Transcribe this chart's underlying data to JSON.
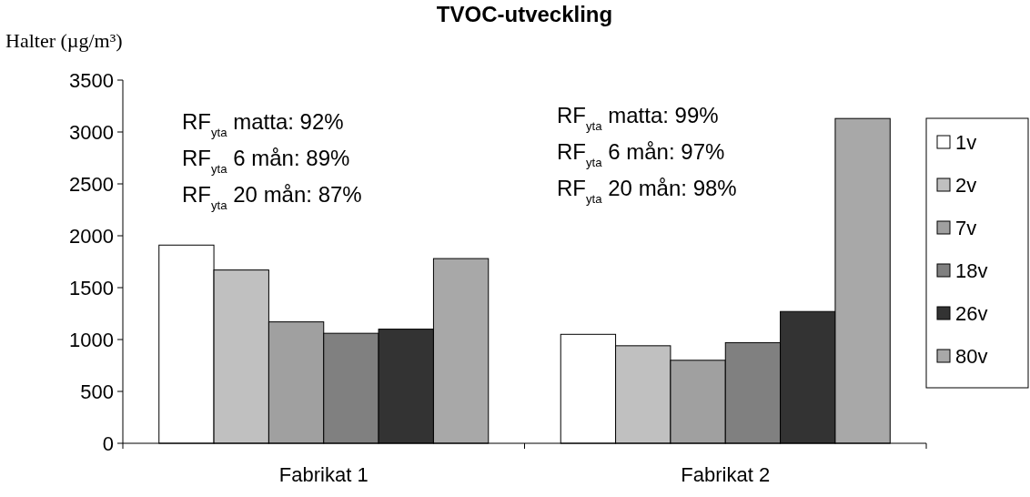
{
  "chart_data": {
    "type": "bar",
    "title": "TVOC-utveckling",
    "ylabel": "Halter (µg/m³)",
    "categories": [
      "Fabrikat 1",
      "Fabrikat 2"
    ],
    "series": [
      {
        "name": "1v",
        "color": "#ffffff",
        "values": [
          1910,
          1050
        ]
      },
      {
        "name": "2v",
        "color": "#c0c0c0",
        "values": [
          1670,
          940
        ]
      },
      {
        "name": "7v",
        "color": "#a0a0a0",
        "values": [
          1170,
          800
        ]
      },
      {
        "name": "18v",
        "color": "#808080",
        "values": [
          1060,
          970
        ]
      },
      {
        "name": "26v",
        "color": "#333333",
        "values": [
          1100,
          1270
        ]
      },
      {
        "name": "80v",
        "color": "#a8a8a8",
        "values": [
          1780,
          3130
        ]
      }
    ],
    "ylim": [
      0,
      3500
    ],
    "yticks": [
      0,
      500,
      1000,
      1500,
      2000,
      2500,
      3000,
      3500
    ],
    "legend": "right",
    "annotations": [
      "RF$_{yta}$ matta:   92%",
      "RF$_{yta}$ 6 mån:   89%",
      "RF$_{yta}$ 20 mån: 87%",
      "RF$_{yta}$ matta:  99%",
      "RF$_{yta}$ 6 mån: 97%",
      "RF$_{yta}$ 20 mån: 98%"
    ]
  }
}
